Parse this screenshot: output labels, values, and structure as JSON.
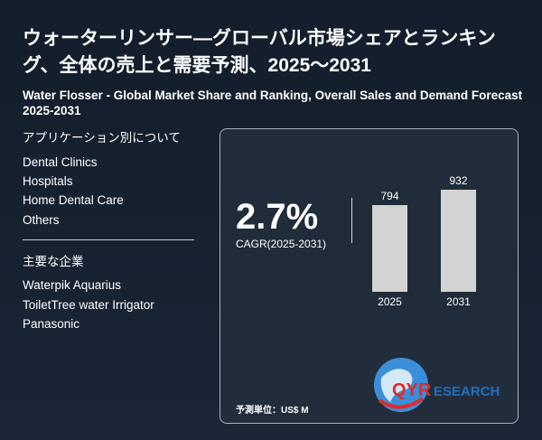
{
  "header": {
    "title_jp": "ウォーターリンサー—グローバル市場シェアとランキング、全体の売上と需要予測、2025～2031",
    "title_en": "Water Flosser - Global Market Share and Ranking, Overall Sales and Demand Forecast 2025-2031"
  },
  "applications": {
    "heading": "アプリケーション別について",
    "items": [
      "Dental Clinics",
      "Hospitals",
      "Home Dental Care",
      "Others"
    ]
  },
  "companies": {
    "heading": "主要な企業",
    "items": [
      "Waterpik Aquarius",
      "ToiletTree water Irrigator",
      "Panasonic"
    ]
  },
  "card": {
    "cagr_value": "2.7%",
    "cagr_label": "CAGR(2025-2031)",
    "unit": "予測単位：US$ M"
  },
  "chart_data": {
    "type": "bar",
    "categories": [
      "2025",
      "2031"
    ],
    "values": [
      794,
      932
    ],
    "value_labels": [
      "794",
      "932"
    ],
    "bar_color": "#d3d3d3"
  },
  "logo": {
    "text_qyr": "QYR",
    "text_research": "RESEARCH",
    "colors": {
      "red": "#e02a2a",
      "blue": "#1f6fc0"
    }
  }
}
